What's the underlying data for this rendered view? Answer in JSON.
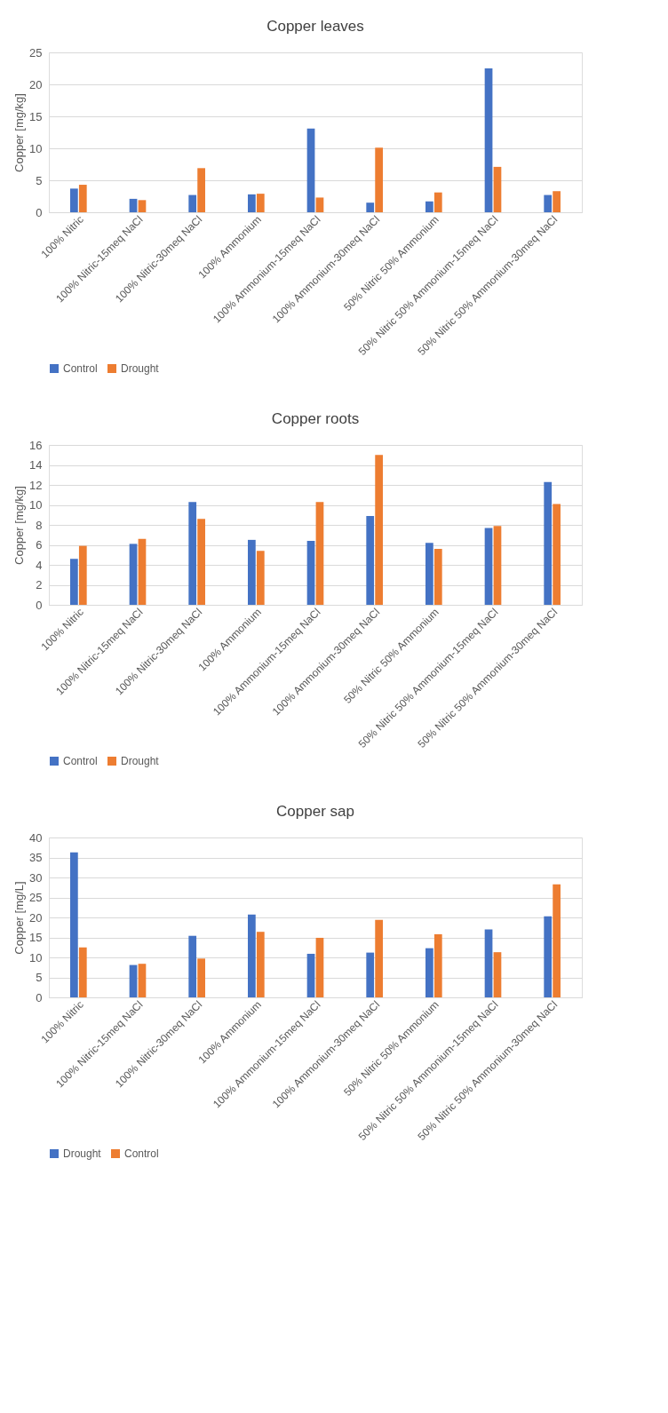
{
  "chart_data": [
    {
      "type": "bar",
      "title": "Copper leaves",
      "ylabel": "Copper  [mg/kg]",
      "categories": [
        "100% Nitric",
        "100% Nitric-15meq NaCl",
        "100% Nitric-30meq NaCl",
        "100% Ammonium",
        "100% Ammonium-15meq NaCl",
        "100% Ammonium-30meq NaCl",
        "50% Nitric 50% Ammonium",
        "50% Nitric 50% Ammonium-15meq NaCl",
        "50% Nitric 50% Ammonium-30meq NaCl"
      ],
      "series": [
        {
          "name": "Control",
          "color": "#4472c4",
          "values": [
            3.7,
            2.1,
            2.7,
            2.8,
            13.1,
            1.5,
            1.7,
            22.5,
            2.7
          ]
        },
        {
          "name": "Drought",
          "color": "#ed7d31",
          "values": [
            4.3,
            1.9,
            6.9,
            2.9,
            2.3,
            10.1,
            3.1,
            7.1,
            3.3
          ]
        }
      ],
      "ylim": [
        0,
        25
      ],
      "yticks": [
        0,
        5,
        10,
        15,
        20,
        25
      ],
      "grid": "y",
      "legend": "bottom"
    },
    {
      "type": "bar",
      "title": "Copper roots",
      "ylabel": "Copper  [mg/kg]",
      "categories": [
        "100% Nitric",
        "100% Nitric-15meq NaCl",
        "100% Nitric-30meq NaCl",
        "100% Ammonium",
        "100% Ammonium-15meq NaCl",
        "100% Ammonium-30meq NaCl",
        "50% Nitric 50% Ammonium",
        "50% Nitric 50% Ammonium-15meq NaCl",
        "50% Nitric 50% Ammonium-30meq NaCl"
      ],
      "series": [
        {
          "name": "Control",
          "color": "#4472c4",
          "values": [
            4.6,
            6.1,
            10.3,
            6.5,
            6.4,
            8.9,
            6.2,
            7.7,
            12.3
          ]
        },
        {
          "name": "Drought",
          "color": "#ed7d31",
          "values": [
            5.9,
            6.6,
            8.6,
            5.4,
            10.3,
            15.0,
            5.6,
            7.9,
            10.1
          ]
        }
      ],
      "ylim": [
        0,
        16
      ],
      "yticks": [
        0,
        2,
        4,
        6,
        8,
        10,
        12,
        14,
        16
      ],
      "grid": "y",
      "legend": "bottom"
    },
    {
      "type": "bar",
      "title": "Copper sap",
      "ylabel": "Copper  [mg/L]",
      "categories": [
        "100% Nitric",
        "100% Nitric-15meq NaCl",
        "100% Nitric-30meq NaCl",
        "100% Ammonium",
        "100% Ammonium-15meq NaCl",
        "100% Ammonium-30meq NaCl",
        "50% Nitric 50% Ammonium",
        "50% Nitric 50% Ammonium-15meq NaCl",
        "50% Nitric 50% Ammonium-30meq NaCl"
      ],
      "series": [
        {
          "name": "Drought",
          "color": "#4472c4",
          "values": [
            36.3,
            8.1,
            15.4,
            20.7,
            10.9,
            11.2,
            12.3,
            17.0,
            20.3
          ]
        },
        {
          "name": "Control",
          "color": "#ed7d31",
          "values": [
            12.5,
            8.4,
            9.7,
            16.4,
            14.9,
            19.4,
            15.8,
            11.3,
            28.3
          ]
        }
      ],
      "ylim": [
        0,
        40
      ],
      "yticks": [
        0,
        5,
        10,
        15,
        20,
        25,
        30,
        35,
        40
      ],
      "grid": "y",
      "legend": "bottom"
    }
  ]
}
